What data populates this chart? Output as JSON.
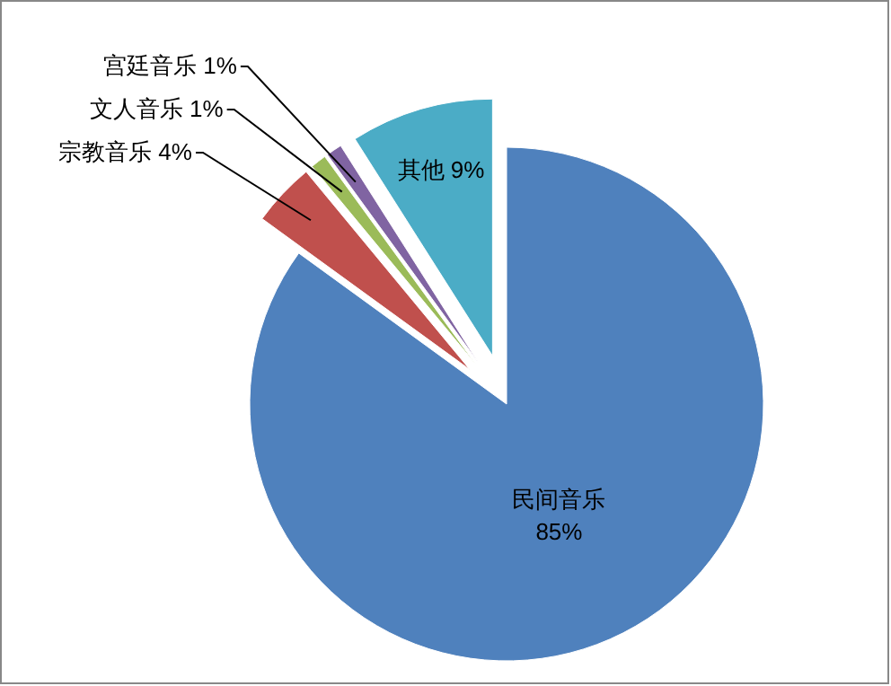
{
  "chart_data": {
    "type": "pie",
    "categories": [
      "民间音乐",
      "宗教音乐",
      "文人音乐",
      "宫廷音乐",
      "其他"
    ],
    "values": [
      85,
      4,
      1,
      1,
      9
    ],
    "value_labels": [
      "85%",
      "4%",
      "1%",
      "1%",
      "9%"
    ],
    "colors": [
      "#4f81bd",
      "#c0504d",
      "#9bbb59",
      "#8064a2",
      "#4bacc6"
    ]
  }
}
